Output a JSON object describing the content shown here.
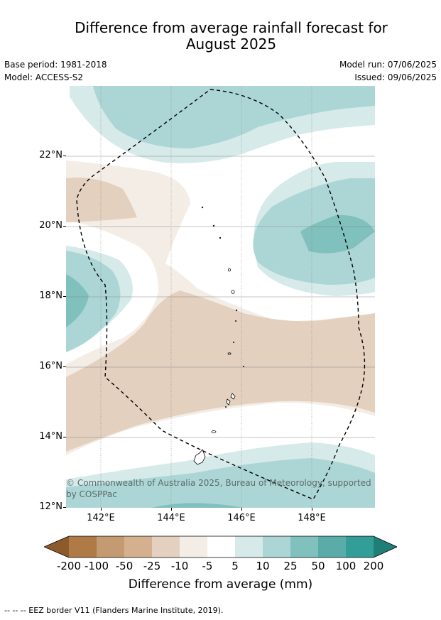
{
  "title_line1": "Difference from average rainfall forecast for",
  "title_line2": "August 2025",
  "base_period": "Base period: 1981-2018",
  "model": "Model: ACCESS-S2",
  "model_run": "Model run: 07/06/2025",
  "issued": "Issued: 09/06/2025",
  "y_ticks": [
    "22°N",
    "20°N",
    "18°N",
    "16°N",
    "14°N",
    "12°N"
  ],
  "x_ticks": [
    "142°E",
    "144°E",
    "146°E",
    "148°E"
  ],
  "copyright": "© Commonwealth of Australia 2025, Bureau of Meteorology, supported by COSPPac",
  "colorbar": {
    "labels": [
      "-200",
      "-100",
      "-50",
      "-25",
      "-10",
      "-5",
      "5",
      "10",
      "25",
      "50",
      "100",
      "200"
    ],
    "colors": [
      "#8c5a2b",
      "#b07a46",
      "#c39a71",
      "#d4b08e",
      "#e3d0bf",
      "#f3ede6",
      "#ffffff",
      "#d5eae9",
      "#acd6d5",
      "#80c0bd",
      "#5aaca8",
      "#339d97",
      "#1f7f78"
    ],
    "title": "Difference from average (mm)"
  },
  "footnote": "--  --  -- EEZ border V11 (Flanders Marine Institute, 2019)."
}
